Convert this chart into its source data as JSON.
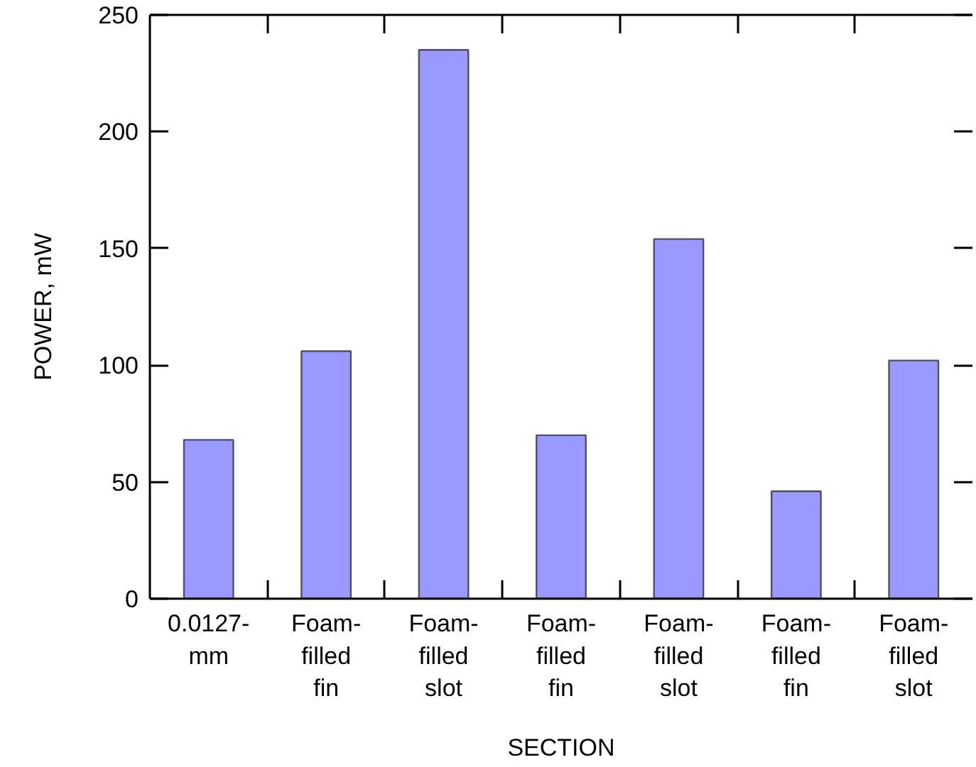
{
  "chart_data": {
    "type": "bar",
    "xlabel": "SECTION",
    "ylabel": "POWER, mW",
    "categories": [
      "0.0127-mm",
      "Foam-filled fin",
      "Foam-filled slot",
      "Foam-filled fin",
      "Foam-filled slot",
      "Foam-filled fin",
      "Foam-filled slot"
    ],
    "values": [
      68,
      106,
      235,
      70,
      154,
      46,
      102
    ],
    "color": "#9999ff",
    "ylim": [
      0,
      250
    ],
    "yticks": [
      0,
      50,
      100,
      150,
      200,
      250
    ]
  }
}
